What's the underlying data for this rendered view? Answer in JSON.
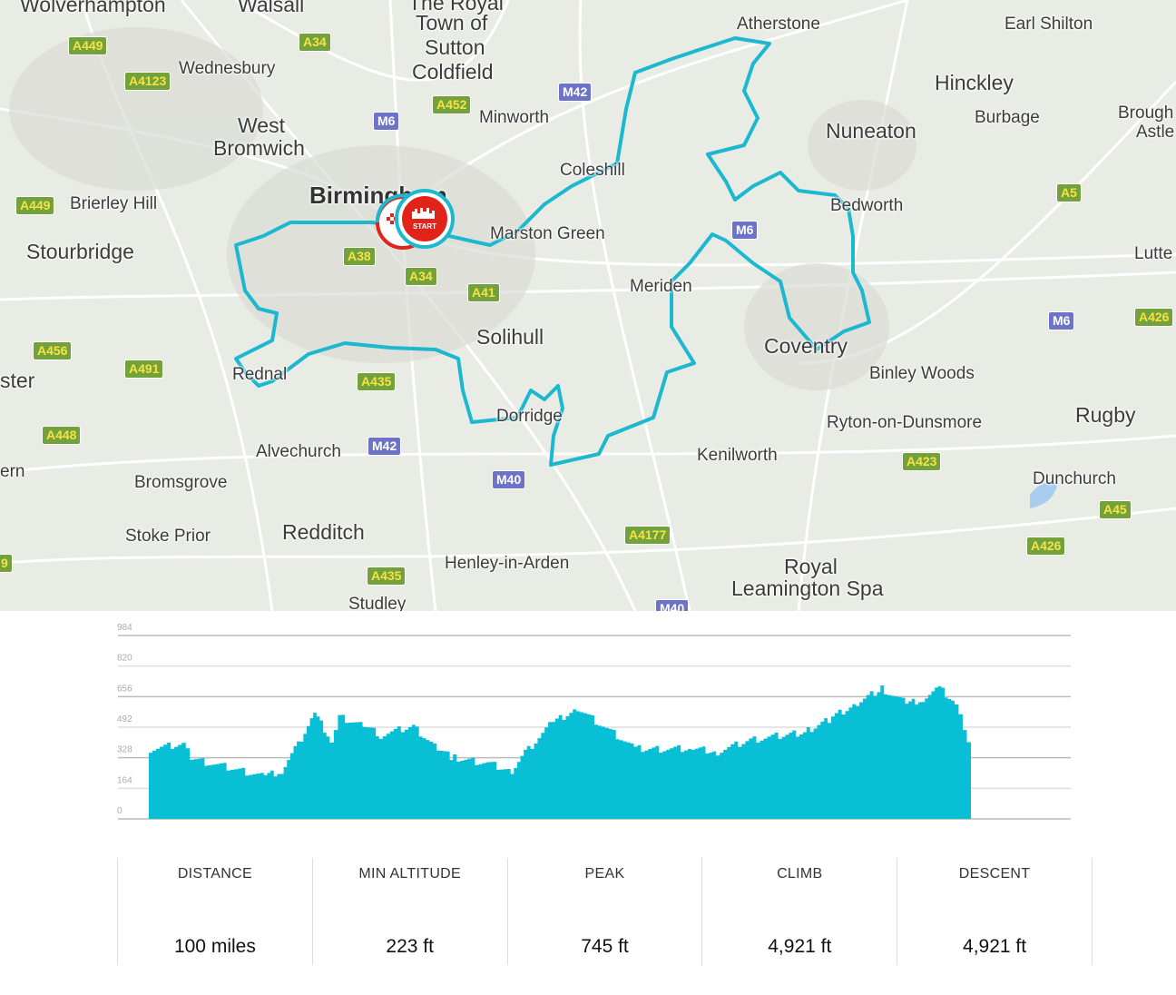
{
  "map": {
    "route_color": "#1bb8cf",
    "place_labels": [
      "Wolverhampton",
      "Walsall",
      "The Royal",
      "Town of",
      "Sutton",
      "Coldfield",
      "Wednesbury",
      "West",
      "Bromwich",
      "Minworth",
      "Atherstone",
      "Earl Shilton",
      "Hinckley",
      "Burbage",
      "Nuneaton",
      "Brough",
      "Astle",
      "Coleshill",
      "Birmingham",
      "Brierley Hill",
      "Stourbridge",
      "Marston Green",
      "Bedworth",
      "Lutte",
      "Meriden",
      "Solihull",
      "Coventry",
      "Binley Woods",
      "ster",
      "Rednal",
      "Dorridge",
      "Ryton-on-Dunsmore",
      "Rugby",
      "Alvechurch",
      "Kenilworth",
      "ern",
      "Bromsgrove",
      "Dunchurch",
      "Stoke Prior",
      "Redditch",
      "Henley-in-Arden",
      "Royal",
      "Leamington Spa",
      "Studley"
    ],
    "road_badges": [
      "A449",
      "A34",
      "A4123",
      "A452",
      "M42",
      "M6",
      "A449",
      "A5",
      "M6",
      "A38",
      "A34",
      "A41",
      "M6",
      "A426",
      "A456",
      "A491",
      "A435",
      "A448",
      "M42",
      "A423",
      "M40",
      "A45",
      "A4177",
      "A426",
      "A435",
      "M40",
      "9"
    ],
    "start_marker": {
      "label": "START",
      "color": "#e2231a",
      "icon": "city-skyline-icon"
    },
    "finish_marker": {
      "icon": "checkered-flag-icon"
    }
  },
  "chart_data": {
    "type": "area",
    "xlabel": "",
    "ylabel": "",
    "ylim": [
      0,
      984
    ],
    "yticks": [
      "0",
      "164",
      "328",
      "492",
      "656",
      "820",
      "984"
    ],
    "grid": true,
    "color": "#08bfd5",
    "x": [
      0,
      4,
      5,
      9,
      14,
      16,
      18,
      20,
      22,
      23,
      26,
      28,
      32,
      35,
      37,
      41,
      44,
      46,
      49,
      52,
      59,
      66,
      69,
      73,
      77,
      80,
      83,
      86,
      89,
      92,
      94,
      96,
      98,
      99,
      100
    ],
    "values": [
      375,
      400,
      325,
      280,
      230,
      253,
      400,
      570,
      425,
      545,
      497,
      450,
      497,
      375,
      326,
      300,
      253,
      375,
      520,
      594,
      375,
      375,
      360,
      424,
      448,
      472,
      545,
      618,
      700,
      618,
      643,
      700,
      618,
      497,
      350
    ]
  },
  "stats": [
    {
      "label": "DISTANCE",
      "value": "100 miles"
    },
    {
      "label": "MIN ALTITUDE",
      "value": "223 ft"
    },
    {
      "label": "PEAK",
      "value": "745 ft"
    },
    {
      "label": "CLIMB",
      "value": "4,921 ft"
    },
    {
      "label": "DESCENT",
      "value": "4,921 ft"
    }
  ]
}
